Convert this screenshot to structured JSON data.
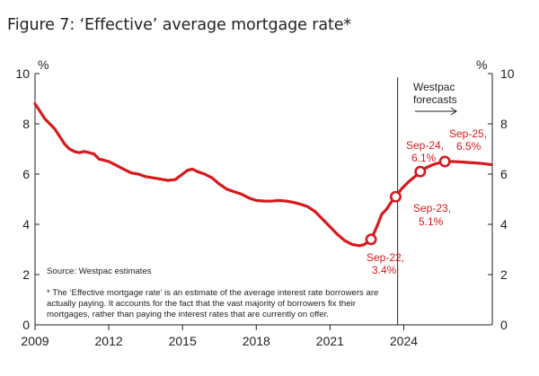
{
  "title": "Figure 7: ‘Effective’ average mortgage rate*",
  "colors": {
    "series": "#d7191c",
    "axis": "#222222",
    "marker_fill": "#ffffff"
  },
  "labels": {
    "unit_left": "%",
    "unit_right": "%",
    "forecast_line1": "Westpac",
    "forecast_line2": "forecasts",
    "source": "Source: Westpac estimates",
    "footnote_line1": "* The ‘Effective mortgage rate’ is an estimate of the average interest rate borrowers are",
    "footnote_line2": "actually paying. It accounts for the fact that the vast majority of borrowers fix their",
    "footnote_line3": "mortgages, rather than paying the interest rates that are currently on offer."
  },
  "chart_data": {
    "type": "line",
    "title": "Figure 7: ‘Effective’ average mortgage rate*",
    "xlabel": "",
    "ylabel": "%",
    "xlim": [
      2009,
      2027.6
    ],
    "ylim": [
      0,
      10
    ],
    "x_ticks": [
      2009,
      2012,
      2015,
      2018,
      2021,
      2024
    ],
    "x_tick_labels": [
      "2009",
      "2012",
      "2015",
      "2018",
      "2021",
      "2024"
    ],
    "y_ticks": [
      0,
      2,
      4,
      6,
      8,
      10
    ],
    "y_tick_labels": [
      "0",
      "2",
      "4",
      "6",
      "8",
      "10"
    ],
    "forecast_start": 2023.75,
    "series": [
      {
        "name": "Effective average mortgage rate",
        "points": [
          [
            2009.0,
            8.8
          ],
          [
            2009.2,
            8.5
          ],
          [
            2009.4,
            8.2
          ],
          [
            2009.6,
            8.0
          ],
          [
            2009.8,
            7.8
          ],
          [
            2010.0,
            7.5
          ],
          [
            2010.2,
            7.2
          ],
          [
            2010.4,
            7.0
          ],
          [
            2010.6,
            6.9
          ],
          [
            2010.8,
            6.85
          ],
          [
            2011.0,
            6.9
          ],
          [
            2011.2,
            6.85
          ],
          [
            2011.4,
            6.8
          ],
          [
            2011.6,
            6.6
          ],
          [
            2011.8,
            6.55
          ],
          [
            2012.0,
            6.5
          ],
          [
            2012.3,
            6.35
          ],
          [
            2012.6,
            6.2
          ],
          [
            2012.9,
            6.05
          ],
          [
            2013.2,
            6.0
          ],
          [
            2013.5,
            5.9
          ],
          [
            2013.8,
            5.85
          ],
          [
            2014.1,
            5.8
          ],
          [
            2014.4,
            5.75
          ],
          [
            2014.7,
            5.78
          ],
          [
            2015.0,
            6.0
          ],
          [
            2015.2,
            6.15
          ],
          [
            2015.4,
            6.2
          ],
          [
            2015.6,
            6.1
          ],
          [
            2015.9,
            6.0
          ],
          [
            2016.2,
            5.85
          ],
          [
            2016.5,
            5.6
          ],
          [
            2016.8,
            5.4
          ],
          [
            2017.1,
            5.3
          ],
          [
            2017.4,
            5.2
          ],
          [
            2017.7,
            5.05
          ],
          [
            2018.0,
            4.95
          ],
          [
            2018.3,
            4.93
          ],
          [
            2018.6,
            4.92
          ],
          [
            2018.9,
            4.95
          ],
          [
            2019.2,
            4.93
          ],
          [
            2019.5,
            4.88
          ],
          [
            2019.8,
            4.8
          ],
          [
            2020.1,
            4.7
          ],
          [
            2020.4,
            4.5
          ],
          [
            2020.7,
            4.2
          ],
          [
            2021.0,
            3.9
          ],
          [
            2021.3,
            3.6
          ],
          [
            2021.6,
            3.35
          ],
          [
            2021.9,
            3.2
          ],
          [
            2022.2,
            3.15
          ],
          [
            2022.4,
            3.2
          ],
          [
            2022.67,
            3.4
          ],
          [
            2022.9,
            3.9
          ],
          [
            2023.1,
            4.4
          ],
          [
            2023.3,
            4.6
          ],
          [
            2023.5,
            4.9
          ],
          [
            2023.67,
            5.1
          ],
          [
            2023.9,
            5.4
          ],
          [
            2024.2,
            5.7
          ],
          [
            2024.45,
            5.9
          ],
          [
            2024.67,
            6.1
          ],
          [
            2024.9,
            6.25
          ],
          [
            2025.2,
            6.38
          ],
          [
            2025.45,
            6.45
          ],
          [
            2025.67,
            6.5
          ],
          [
            2026.0,
            6.5
          ],
          [
            2026.4,
            6.48
          ],
          [
            2026.8,
            6.45
          ],
          [
            2027.2,
            6.42
          ],
          [
            2027.55,
            6.38
          ]
        ],
        "markers": [
          {
            "x": 2022.67,
            "y": 3.4,
            "label_line1": "Sep-22,",
            "label_line2": "3.4%"
          },
          {
            "x": 2023.67,
            "y": 5.1,
            "label_line1": "Sep-23,",
            "label_line2": "5.1%"
          },
          {
            "x": 2024.67,
            "y": 6.1,
            "label_line1": "Sep-24,",
            "label_line2": "6.1%"
          },
          {
            "x": 2025.67,
            "y": 6.5,
            "label_line1": "Sep-25,",
            "label_line2": "6.5%"
          }
        ]
      }
    ]
  }
}
